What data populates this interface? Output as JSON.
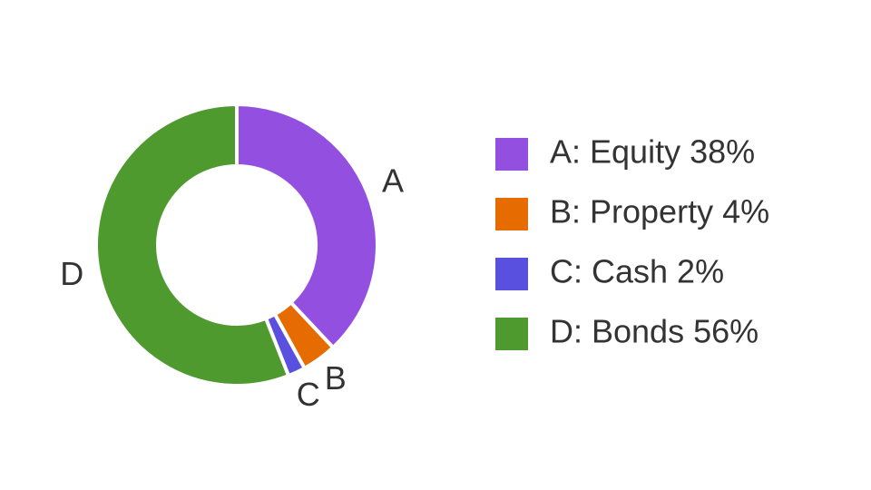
{
  "chart_data": {
    "type": "donut",
    "labels": [
      "A",
      "B",
      "C",
      "D"
    ],
    "categories": [
      "A: Equity 38%",
      "B: Property 4%",
      "C: Cash 2%",
      "D: Bonds 56%"
    ],
    "values": [
      38,
      4,
      2,
      56
    ],
    "colors": [
      "#9350e0",
      "#e66b00",
      "#5a50e0",
      "#4e9a2f"
    ]
  }
}
